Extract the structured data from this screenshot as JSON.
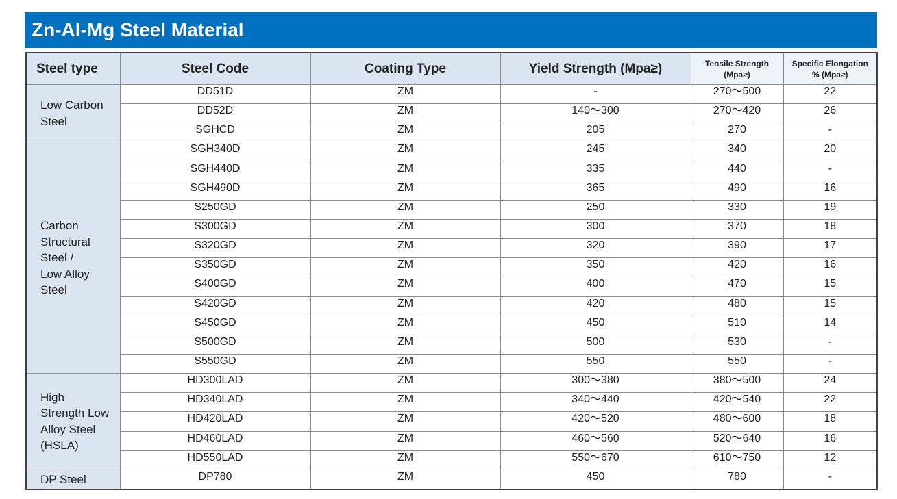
{
  "header": {
    "title": "Zn-Al-Mg Steel Material"
  },
  "table": {
    "columns": [
      "Steel type",
      "Steel Code",
      "Coating Type",
      "Yield Strength (Mpa≥)",
      "Tensile Strength\n(Mpa≥)",
      "Specific Elongation\n% (Mpa≥)"
    ],
    "groups": [
      {
        "type": "Low Carbon\nSteel",
        "rows": [
          [
            "DD51D",
            "ZM",
            "-",
            "270～500",
            "22"
          ],
          [
            "DD52D",
            "ZM",
            "140～300",
            "270～420",
            "26"
          ],
          [
            "SGHCD",
            "ZM",
            "205",
            "270",
            "-"
          ]
        ]
      },
      {
        "type": "Carbon\nStructural\nSteel /\nLow Alloy\nSteel",
        "rows": [
          [
            "SGH340D",
            "ZM",
            "245",
            "340",
            "20"
          ],
          [
            "SGH440D",
            "ZM",
            "335",
            "440",
            "-"
          ],
          [
            "SGH490D",
            "ZM",
            "365",
            "490",
            "16"
          ],
          [
            "S250GD",
            "ZM",
            "250",
            "330",
            "19"
          ],
          [
            "S300GD",
            "ZM",
            "300",
            "370",
            "18"
          ],
          [
            "S320GD",
            "ZM",
            "320",
            "390",
            "17"
          ],
          [
            "S350GD",
            "ZM",
            "350",
            "420",
            "16"
          ],
          [
            "S400GD",
            "ZM",
            "400",
            "470",
            "15"
          ],
          [
            "S420GD",
            "ZM",
            "420",
            "480",
            "15"
          ],
          [
            "S450GD",
            "ZM",
            "450",
            "510",
            "14"
          ],
          [
            "S500GD",
            "ZM",
            "500",
            "530",
            "-"
          ],
          [
            "S550GD",
            "ZM",
            "550",
            "550",
            "-"
          ]
        ]
      },
      {
        "type": "High\nStrength Low\nAlloy Steel\n(HSLA)",
        "rows": [
          [
            "HD300LAD",
            "ZM",
            "300～380",
            "380～500",
            "24"
          ],
          [
            "HD340LAD",
            "ZM",
            "340～440",
            "420～540",
            "22"
          ],
          [
            "HD420LAD",
            "ZM",
            "420～520",
            "480～600",
            "18"
          ],
          [
            "HD460LAD",
            "ZM",
            "460～560",
            "520～640",
            "16"
          ],
          [
            "HD550LAD",
            "ZM",
            "550～670",
            "610～750",
            "12"
          ]
        ]
      },
      {
        "type": "DP Steel",
        "rows": [
          [
            "DP780",
            "ZM",
            "450",
            "780",
            "-"
          ]
        ]
      }
    ]
  }
}
